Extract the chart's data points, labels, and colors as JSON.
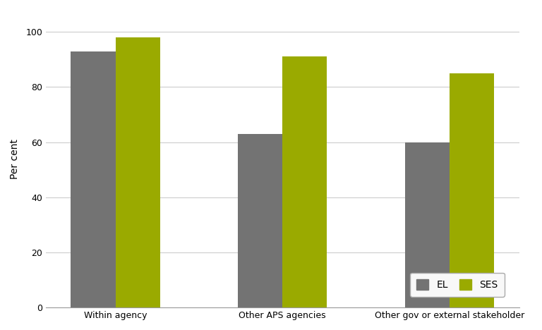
{
  "categories": [
    "Within agency",
    "Other APS agencies",
    "Other gov or external stakeholder"
  ],
  "EL_values": [
    93,
    63,
    60
  ],
  "SES_values": [
    98,
    91,
    85
  ],
  "EL_color": "#737373",
  "SES_color": "#9aaa00",
  "ylabel": "Per cent",
  "ylim": [
    0,
    108
  ],
  "yticks": [
    0,
    20,
    40,
    60,
    80,
    100
  ],
  "legend_labels": [
    "EL",
    "SES"
  ],
  "bar_width": 0.32,
  "background_color": "#ffffff",
  "grid_color": "#cccccc",
  "legend_loc": "lower right",
  "legend_facecolor": "#f8f8f8"
}
